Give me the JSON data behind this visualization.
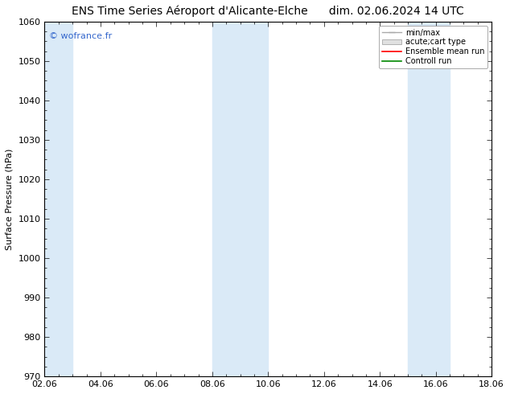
{
  "title_left": "ENS Time Series Aéroport d'Alicante-Elche",
  "title_right": "dim. 02.06.2024 14 UTC",
  "ylabel": "Surface Pressure (hPa)",
  "ylim": [
    970,
    1060
  ],
  "yticks": [
    970,
    980,
    990,
    1000,
    1010,
    1020,
    1030,
    1040,
    1050,
    1060
  ],
  "xlim": [
    0,
    16
  ],
  "xtick_labels": [
    "02.06",
    "04.06",
    "06.06",
    "08.06",
    "10.06",
    "12.06",
    "14.06",
    "16.06",
    "18.06"
  ],
  "xtick_positions": [
    0,
    2,
    4,
    6,
    8,
    10,
    12,
    14,
    16
  ],
  "background_color": "#ffffff",
  "plot_bg_color": "#ffffff",
  "shaded_bands": [
    {
      "x_start": 0,
      "x_end": 1.0,
      "color": "#daeaf7"
    },
    {
      "x_start": 6,
      "x_end": 8.0,
      "color": "#daeaf7"
    },
    {
      "x_start": 13,
      "x_end": 14.5,
      "color": "#daeaf7"
    }
  ],
  "watermark": "© wofrance.fr",
  "watermark_color": "#3366cc",
  "legend_entries": [
    "min/max",
    "acute;cart type",
    "Ensemble mean run",
    "Controll run"
  ],
  "legend_colors": [
    "#aaaaaa",
    "#cccccc",
    "#ff0000",
    "#008800"
  ],
  "title_fontsize": 10,
  "axis_label_fontsize": 8,
  "tick_fontsize": 8
}
